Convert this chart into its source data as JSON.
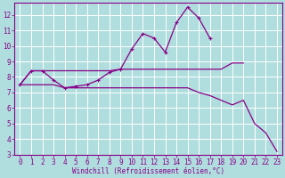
{
  "xlabel": "Windchill (Refroidissement éolien,°C)",
  "bg_color": "#b0dede",
  "grid_color": "#ffffff",
  "line_color": "#880088",
  "x_all": [
    0,
    1,
    2,
    3,
    4,
    5,
    6,
    7,
    8,
    9,
    10,
    11,
    12,
    13,
    14,
    15,
    16,
    17,
    18,
    19,
    20,
    21,
    22,
    23
  ],
  "line_spiky": [
    7.5,
    8.4,
    8.4,
    7.8,
    7.3,
    7.4,
    7.5,
    7.8,
    8.3,
    8.5,
    9.8,
    10.8,
    10.5,
    9.6,
    11.5,
    12.5,
    11.8,
    10.5,
    null,
    null,
    null,
    null,
    null,
    null
  ],
  "line_smooth": [
    7.5,
    8.4,
    8.4,
    8.4,
    8.4,
    8.4,
    8.4,
    8.4,
    8.4,
    8.5,
    8.5,
    8.5,
    8.5,
    8.5,
    8.5,
    8.5,
    8.5,
    8.5,
    8.5,
    8.9,
    8.9,
    null,
    null,
    null
  ],
  "line_decline": [
    7.5,
    7.5,
    7.5,
    7.5,
    7.3,
    7.3,
    7.3,
    7.3,
    7.3,
    7.3,
    7.3,
    7.3,
    7.3,
    7.3,
    7.3,
    7.3,
    7.0,
    6.8,
    6.5,
    6.2,
    6.5,
    5.0,
    4.4,
    3.2
  ],
  "ylim": [
    3,
    12.8
  ],
  "yticks": [
    3,
    4,
    5,
    6,
    7,
    8,
    9,
    10,
    11,
    12
  ],
  "xlim_min": -0.5,
  "xlim_max": 23.5,
  "tick_fontsize": 5.5,
  "xlabel_fontsize": 5.5
}
